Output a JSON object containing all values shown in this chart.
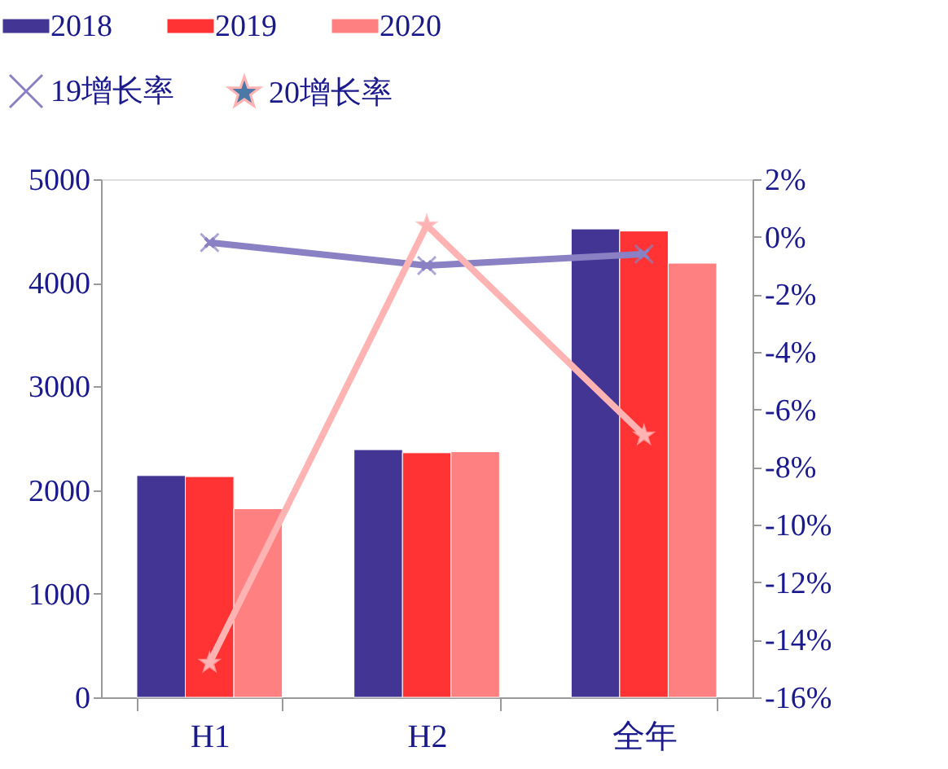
{
  "chart_data": {
    "type": "bar",
    "categories": [
      "H1",
      "H2",
      "全年"
    ],
    "series": [
      {
        "name": "2018",
        "color": "#433594",
        "values": [
          2140,
          2390,
          4520
        ]
      },
      {
        "name": "2019",
        "color": "#ff3333",
        "values": [
          2130,
          2360,
          4500
        ]
      },
      {
        "name": "2020",
        "color": "#ff8080",
        "values": [
          1820,
          2370,
          4190
        ]
      },
      {
        "name": "19增长率",
        "type": "line",
        "axis": "y2",
        "marker": "cross",
        "color": "#8a80c4",
        "values": [
          -0.2,
          -1.0,
          -0.6
        ]
      },
      {
        "name": "20增长率",
        "type": "line",
        "axis": "y2",
        "marker": "star",
        "color": "#ffb3b3",
        "values": [
          -14.8,
          0.4,
          -6.9
        ]
      }
    ],
    "ylim": [
      0,
      5000
    ],
    "yticks": [
      0,
      1000,
      2000,
      3000,
      4000,
      5000
    ],
    "y2lim": [
      -16,
      2
    ],
    "y2ticks": [
      {
        "value": 2,
        "label": "2%"
      },
      {
        "value": 0,
        "label": "0%"
      },
      {
        "value": -2,
        "label": "-2%"
      },
      {
        "value": -4,
        "label": "-4%"
      },
      {
        "value": -6,
        "label": "-6%"
      },
      {
        "value": -8,
        "label": "-8%"
      },
      {
        "value": -10,
        "label": "-10%"
      },
      {
        "value": -12,
        "label": "-12%"
      },
      {
        "value": -14,
        "label": "-14%"
      },
      {
        "value": -16,
        "label": "-16%"
      }
    ],
    "grid": false,
    "legend": "top"
  }
}
